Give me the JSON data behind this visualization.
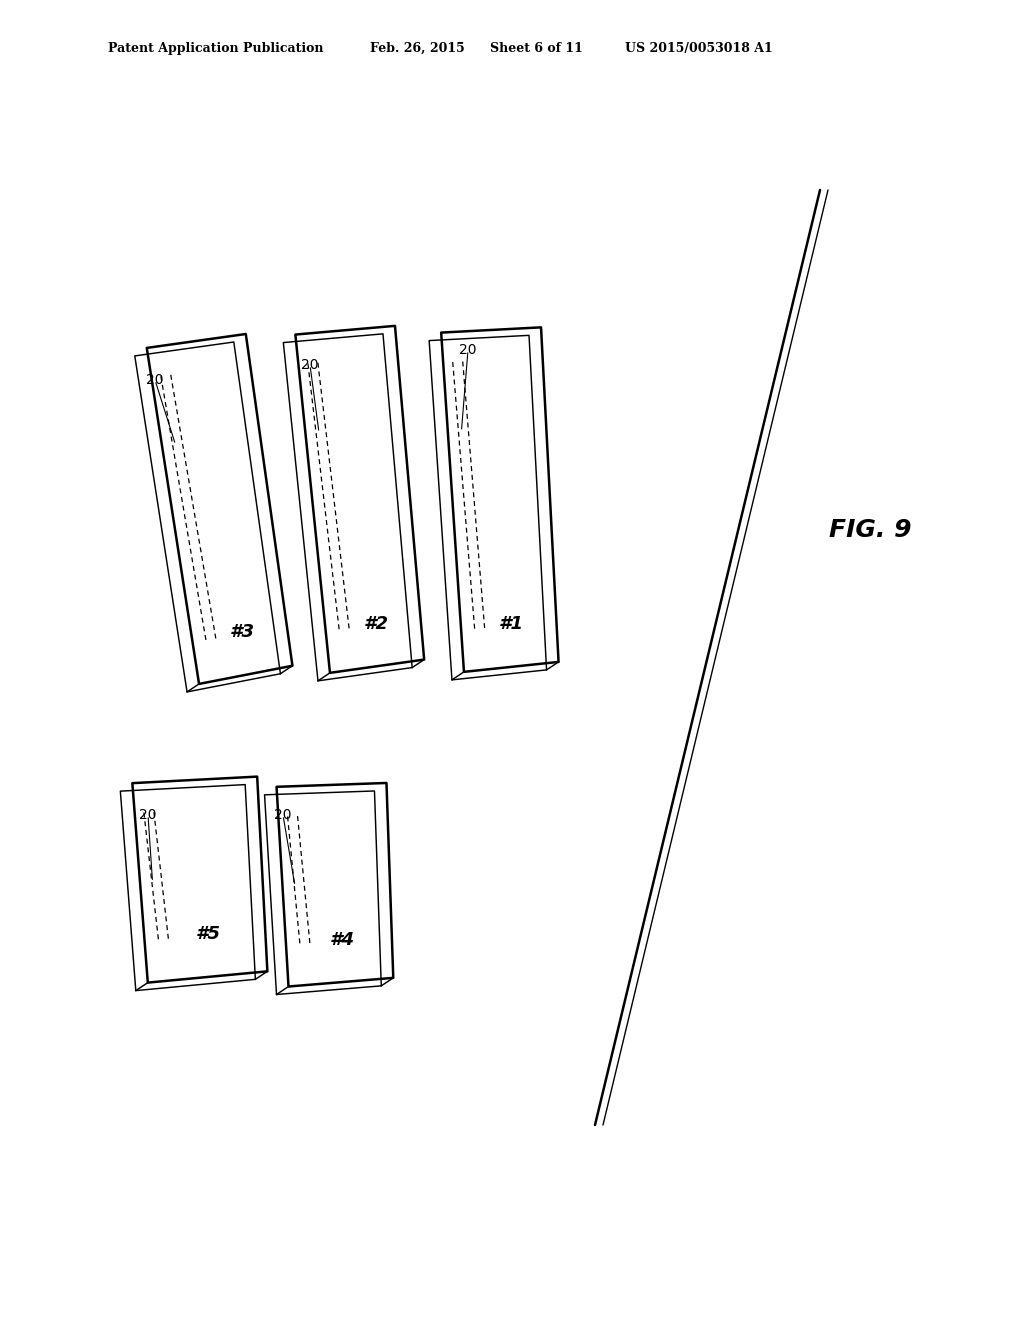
{
  "title_line1": "Patent Application Publication",
  "title_date": "Feb. 26, 2015",
  "title_sheet": "Sheet 6 of 11",
  "title_patent": "US 2015/0053018 A1",
  "fig_label": "FIG. 9",
  "bg_color": "#ffffff",
  "line_color": "#000000",
  "panels": [
    {
      "label": "#3",
      "row": 0,
      "col": 0
    },
    {
      "label": "#2",
      "row": 0,
      "col": 1
    },
    {
      "label": "#1",
      "row": 0,
      "col": 2
    },
    {
      "label": "#5",
      "row": 1,
      "col": 0
    },
    {
      "label": "#4",
      "row": 1,
      "col": 1
    }
  ]
}
